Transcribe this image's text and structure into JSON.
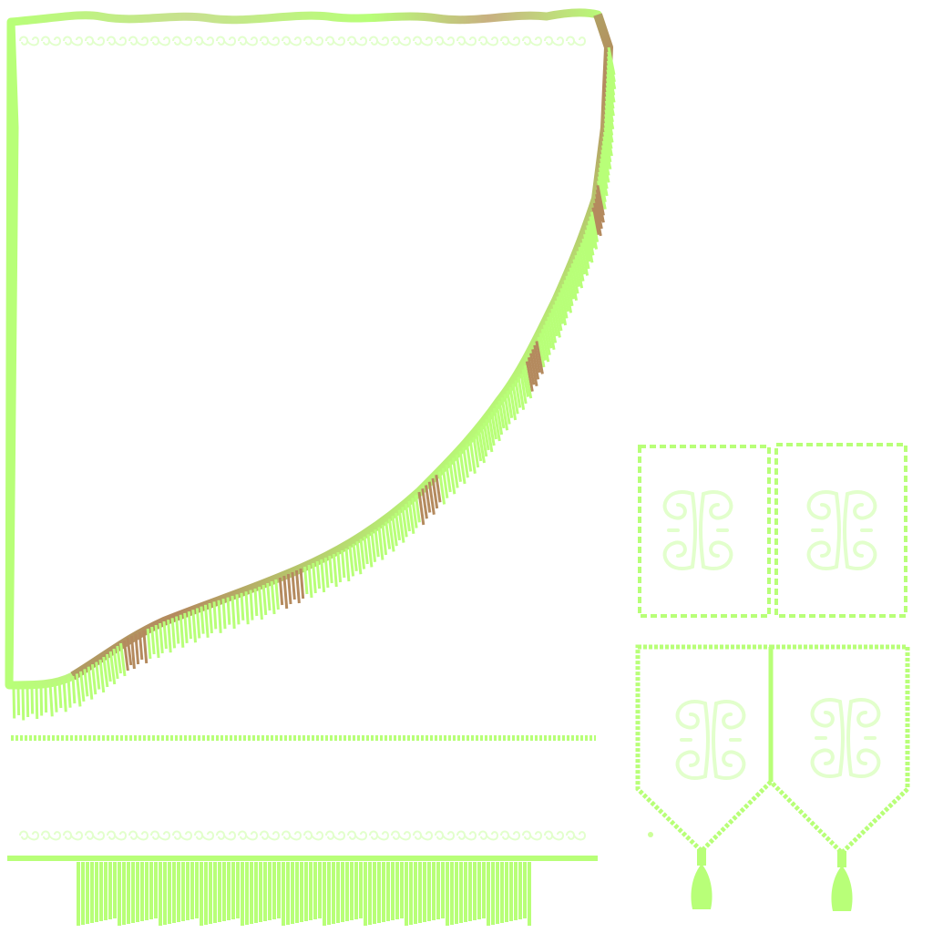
{
  "texture": {
    "colors": {
      "background": "#ffffff",
      "primary_green": "#b8ff78",
      "light_green": "#ccff99",
      "pale_green": "#e2ffcc",
      "brown_shade": "#b48a5e",
      "olive_shade": "#a8c070",
      "gray_scroll": "#d6d6cc"
    },
    "pieces": [
      {
        "name": "curtain-panel",
        "fringe": true,
        "scroll_border": true
      },
      {
        "name": "tieback-cord",
        "style": "beaded"
      },
      {
        "name": "valance-strip",
        "fringe": true,
        "scroll_border": true
      },
      {
        "name": "square-panel-pair",
        "count": 2,
        "border": "dashed",
        "motif": "double-scroll"
      },
      {
        "name": "pennant-panel-pair",
        "count": 2,
        "border": "braided",
        "motif": "double-scroll",
        "tassel": true
      }
    ]
  }
}
